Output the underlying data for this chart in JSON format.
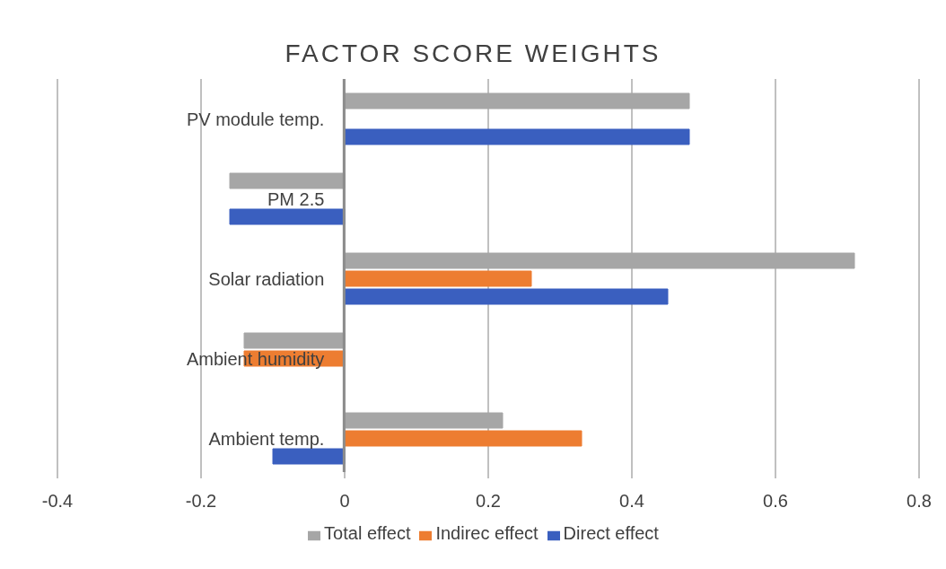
{
  "chart_data": {
    "type": "bar",
    "orientation": "horizontal",
    "title": "FACTOR SCORE WEIGHTS",
    "categories": [
      "PV module temp.",
      "PM 2.5",
      "Solar radiation",
      "Ambient humidity",
      "Ambient temp."
    ],
    "series": [
      {
        "name": "Total effect",
        "color": "#a6a6a6",
        "values": [
          0.48,
          -0.16,
          0.71,
          -0.14,
          0.22
        ]
      },
      {
        "name": "Indirec effect",
        "color": "#ed7d31",
        "values": [
          null,
          null,
          0.26,
          -0.14,
          0.33
        ]
      },
      {
        "name": "Direct effect",
        "color": "#3a5fbf",
        "values": [
          0.48,
          -0.16,
          0.45,
          null,
          -0.1
        ]
      }
    ],
    "xlim": [
      -0.4,
      0.8
    ],
    "xticks": [
      -0.4,
      -0.2,
      0,
      0.2,
      0.4,
      0.6,
      0.8
    ],
    "grid": "x",
    "legend": "bottom"
  }
}
